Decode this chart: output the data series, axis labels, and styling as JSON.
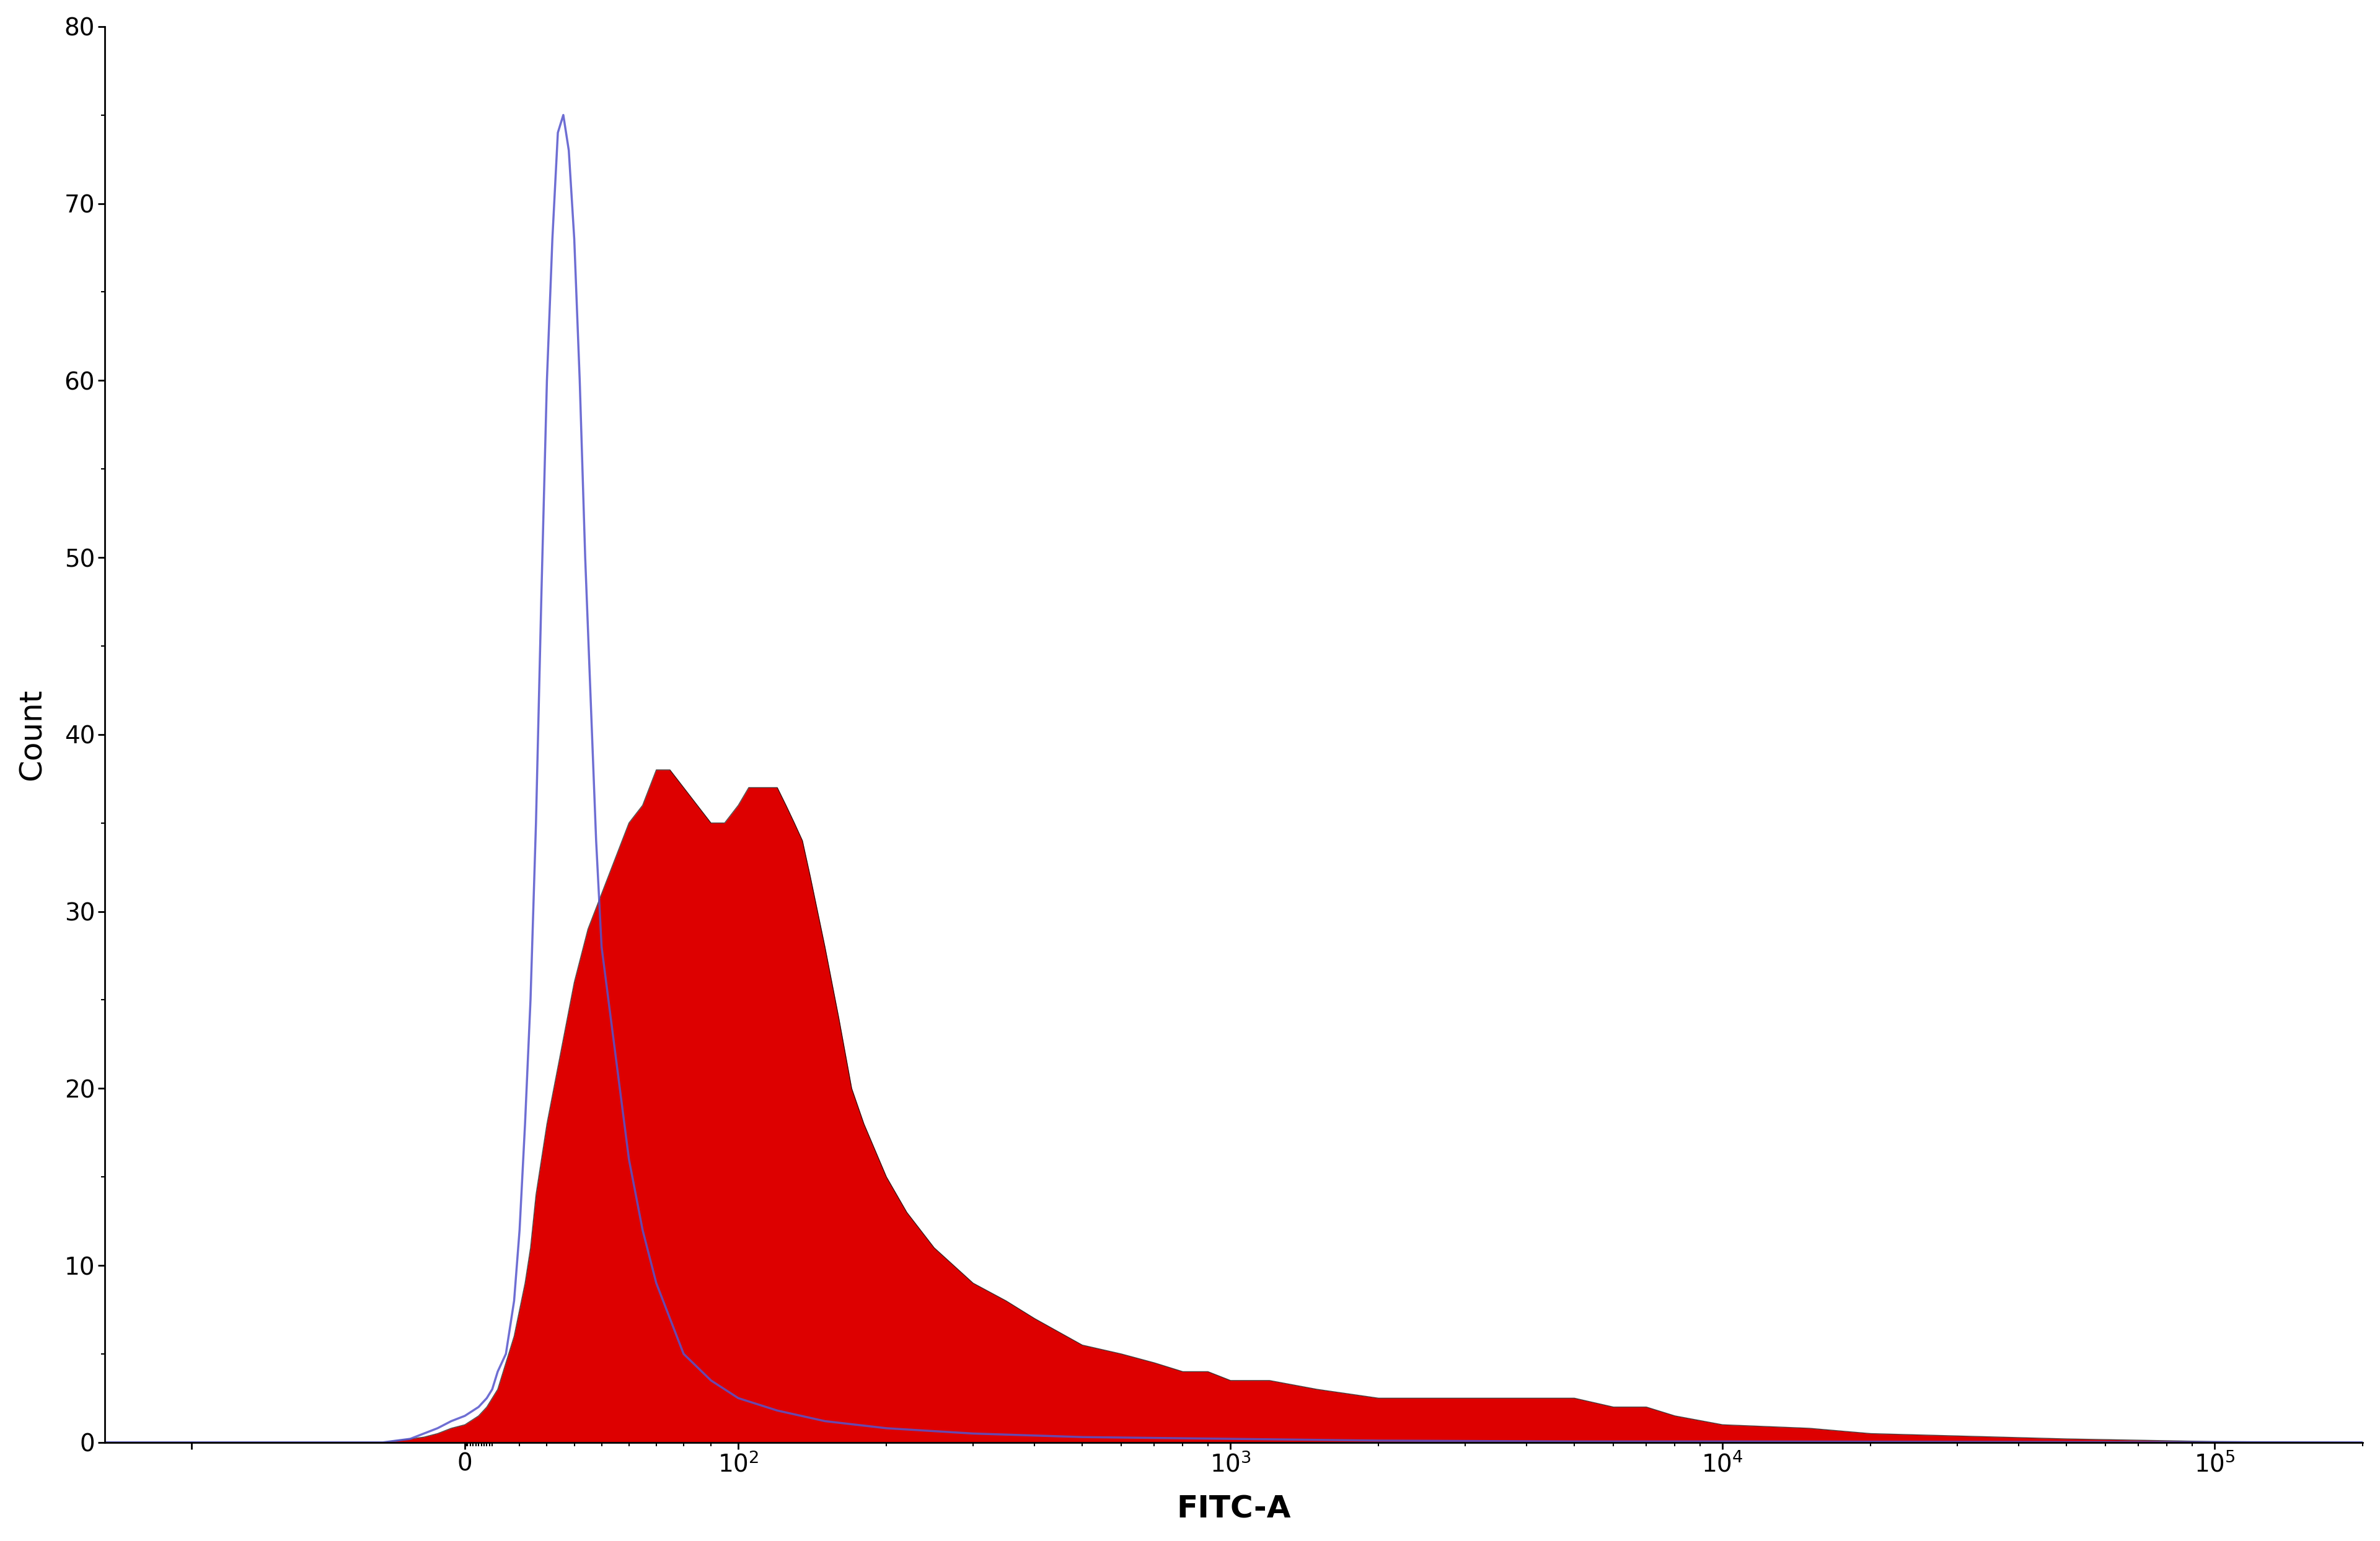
{
  "title": "",
  "xlabel": "FITC-A",
  "ylabel": "Count",
  "xlim_symlog": [
    -100,
    200000
  ],
  "ylim": [
    0,
    80
  ],
  "yticks": [
    0,
    10,
    20,
    30,
    40,
    50,
    60,
    70,
    80
  ],
  "xtick_labels": [
    "",
    "0",
    "10²",
    "10³",
    "10⁴",
    "10⁵"
  ],
  "bg_color": "#ffffff",
  "blue_color": "#5555cc",
  "red_color": "#dd0000",
  "red_edge_color": "#000000",
  "linthresh": 100,
  "linscale": 0.5,
  "blue_x": [
    -150,
    -120,
    -100,
    -80,
    -60,
    -50,
    -40,
    -30,
    -20,
    -15,
    -10,
    -5,
    0,
    5,
    8,
    10,
    12,
    15,
    18,
    20,
    22,
    24,
    26,
    28,
    30,
    32,
    34,
    36,
    38,
    40,
    42,
    44,
    46,
    48,
    50,
    55,
    60,
    65,
    70,
    75,
    80,
    90,
    100,
    120,
    150,
    200,
    300,
    500,
    1000,
    2000,
    5000,
    10000,
    50000,
    100000,
    200000
  ],
  "blue_y": [
    0,
    0,
    0,
    0,
    0,
    0,
    0,
    0,
    0.2,
    0.5,
    0.8,
    1.2,
    1.5,
    2,
    2.5,
    3,
    4,
    5,
    8,
    12,
    18,
    25,
    35,
    48,
    60,
    68,
    74,
    75,
    73,
    68,
    60,
    50,
    42,
    34,
    28,
    22,
    16,
    12,
    9,
    7,
    5,
    3.5,
    2.5,
    1.8,
    1.2,
    0.8,
    0.5,
    0.3,
    0.2,
    0.1,
    0.05,
    0.05,
    0.02,
    0.01,
    0
  ],
  "red_x": [
    -150,
    -100,
    -80,
    -60,
    -50,
    -40,
    -35,
    -30,
    -25,
    -20,
    -15,
    -10,
    -5,
    0,
    5,
    8,
    10,
    12,
    14,
    16,
    18,
    20,
    22,
    24,
    26,
    28,
    30,
    35,
    40,
    45,
    50,
    55,
    60,
    65,
    70,
    75,
    80,
    85,
    90,
    95,
    100,
    105,
    110,
    115,
    120,
    125,
    130,
    135,
    140,
    150,
    160,
    170,
    180,
    200,
    220,
    250,
    300,
    350,
    400,
    500,
    600,
    700,
    800,
    900,
    1000,
    1200,
    1500,
    2000,
    2500,
    3000,
    4000,
    5000,
    6000,
    7000,
    8000,
    10000,
    15000,
    20000,
    50000,
    100000,
    200000
  ],
  "red_y": [
    0,
    0,
    0,
    0,
    0,
    0,
    0,
    0,
    0.1,
    0.2,
    0.3,
    0.5,
    0.8,
    1,
    1.5,
    2,
    2.5,
    3,
    4,
    5,
    6,
    7.5,
    9,
    11,
    14,
    16,
    18,
    22,
    26,
    29,
    31,
    33,
    35,
    36,
    38,
    38,
    37,
    36,
    35,
    35,
    36,
    37,
    37,
    37,
    37,
    36,
    35,
    34,
    32,
    28,
    24,
    20,
    18,
    15,
    13,
    11,
    9,
    8,
    7,
    5.5,
    5,
    4.5,
    4,
    4,
    3.5,
    3.5,
    3,
    2.5,
    2.5,
    2.5,
    2.5,
    2.5,
    2,
    2,
    1.5,
    1,
    0.8,
    0.5,
    0.2,
    0.05,
    0
  ]
}
